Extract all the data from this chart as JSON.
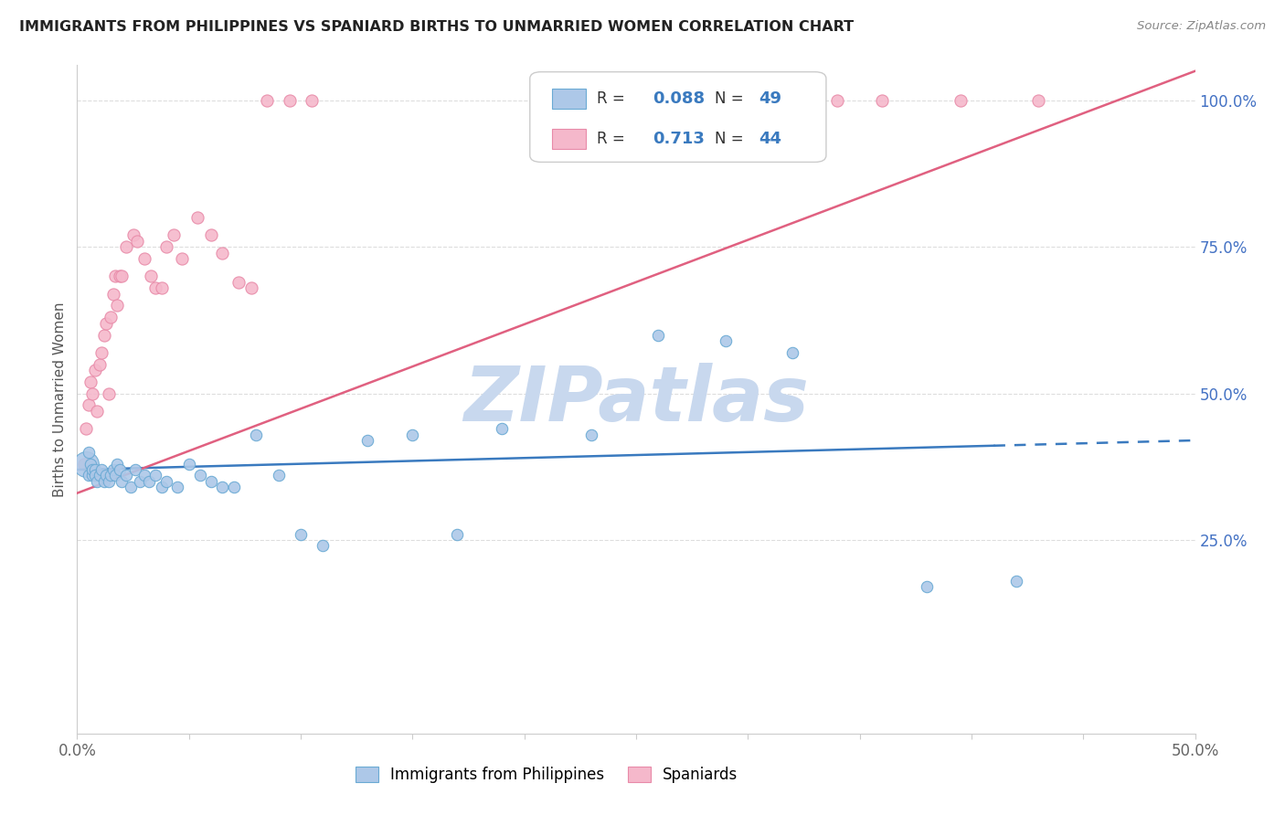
{
  "title": "IMMIGRANTS FROM PHILIPPINES VS SPANIARD BIRTHS TO UNMARRIED WOMEN CORRELATION CHART",
  "source": "Source: ZipAtlas.com",
  "ylabel": "Births to Unmarried Women",
  "legend_label1": "Immigrants from Philippines",
  "legend_label2": "Spaniards",
  "r1": "0.088",
  "n1": "49",
  "r2": "0.713",
  "n2": "44",
  "blue_color": "#adc8e8",
  "blue_edge_color": "#6aaad4",
  "blue_line_color": "#3a7abf",
  "pink_color": "#f5b8cb",
  "pink_edge_color": "#e88aa8",
  "pink_line_color": "#e06080",
  "xmin": 0.0,
  "xmax": 0.5,
  "ymin": -0.08,
  "ymax": 1.06,
  "blue_x": [
    0.004,
    0.005,
    0.005,
    0.006,
    0.007,
    0.007,
    0.008,
    0.008,
    0.009,
    0.01,
    0.011,
    0.012,
    0.013,
    0.014,
    0.015,
    0.016,
    0.017,
    0.018,
    0.019,
    0.02,
    0.022,
    0.024,
    0.026,
    0.028,
    0.03,
    0.032,
    0.035,
    0.038,
    0.04,
    0.045,
    0.05,
    0.055,
    0.06,
    0.065,
    0.07,
    0.08,
    0.09,
    0.1,
    0.11,
    0.13,
    0.15,
    0.17,
    0.19,
    0.23,
    0.26,
    0.29,
    0.32,
    0.38,
    0.42
  ],
  "blue_y": [
    0.38,
    0.36,
    0.4,
    0.38,
    0.36,
    0.37,
    0.37,
    0.36,
    0.35,
    0.36,
    0.37,
    0.35,
    0.36,
    0.35,
    0.36,
    0.37,
    0.36,
    0.38,
    0.37,
    0.35,
    0.36,
    0.34,
    0.37,
    0.35,
    0.36,
    0.35,
    0.36,
    0.34,
    0.35,
    0.34,
    0.38,
    0.36,
    0.35,
    0.34,
    0.34,
    0.43,
    0.36,
    0.26,
    0.24,
    0.42,
    0.43,
    0.26,
    0.44,
    0.43,
    0.6,
    0.59,
    0.57,
    0.17,
    0.18
  ],
  "blue_sizes": [
    400,
    80,
    80,
    80,
    80,
    80,
    80,
    80,
    80,
    80,
    80,
    80,
    80,
    80,
    80,
    80,
    80,
    80,
    80,
    80,
    80,
    80,
    80,
    80,
    80,
    80,
    80,
    80,
    80,
    80,
    80,
    80,
    80,
    80,
    80,
    80,
    80,
    80,
    80,
    80,
    80,
    80,
    80,
    80,
    80,
    80,
    80,
    80,
    80
  ],
  "pink_x": [
    0.003,
    0.004,
    0.005,
    0.006,
    0.007,
    0.008,
    0.009,
    0.01,
    0.011,
    0.012,
    0.013,
    0.014,
    0.015,
    0.016,
    0.017,
    0.018,
    0.019,
    0.02,
    0.022,
    0.025,
    0.027,
    0.03,
    0.033,
    0.035,
    0.038,
    0.04,
    0.043,
    0.047,
    0.054,
    0.06,
    0.065,
    0.072,
    0.078,
    0.085,
    0.095,
    0.105,
    0.28,
    0.29,
    0.3,
    0.32,
    0.34,
    0.36,
    0.395,
    0.43
  ],
  "pink_y": [
    0.38,
    0.44,
    0.48,
    0.52,
    0.5,
    0.54,
    0.47,
    0.55,
    0.57,
    0.6,
    0.62,
    0.5,
    0.63,
    0.67,
    0.7,
    0.65,
    0.7,
    0.7,
    0.75,
    0.77,
    0.76,
    0.73,
    0.7,
    0.68,
    0.68,
    0.75,
    0.77,
    0.73,
    0.8,
    0.77,
    0.74,
    0.69,
    0.68,
    1.0,
    1.0,
    1.0,
    1.0,
    1.0,
    1.0,
    1.0,
    1.0,
    1.0,
    1.0,
    1.0
  ],
  "watermark_text": "ZIPatlas",
  "watermark_color": "#c8d8ee",
  "background_color": "#ffffff",
  "grid_color": "#dddddd",
  "blue_line_start": 0.0,
  "blue_line_end_solid": 0.41,
  "blue_line_end_dash": 0.5,
  "pink_line_start": 0.0,
  "pink_line_end": 0.5
}
